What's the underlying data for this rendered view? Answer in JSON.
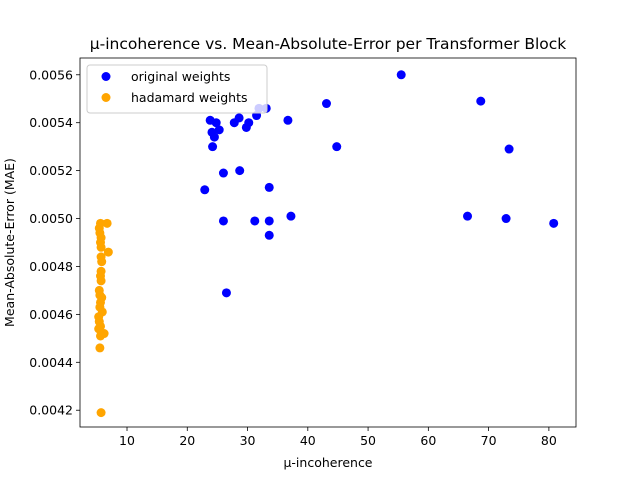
{
  "chart_data": {
    "type": "scatter",
    "title": "μ-incoherence vs. Mean-Absolute-Error per Transformer Block",
    "xlabel": "μ-incoherence",
    "ylabel": "Mean-Absolute-Error (MAE)",
    "xlim": [
      2.2,
      84.5
    ],
    "ylim": [
      0.00413,
      0.00567
    ],
    "xticks": [
      10,
      20,
      30,
      40,
      50,
      60,
      70,
      80
    ],
    "yticks": [
      0.0042,
      0.0044,
      0.0046,
      0.0048,
      0.005,
      0.0052,
      0.0054,
      0.0056
    ],
    "ytick_labels": [
      "0.0042",
      "0.0044",
      "0.0046",
      "0.0048",
      "0.0050",
      "0.0052",
      "0.0054",
      "0.0056"
    ],
    "grid": false,
    "legend_position": "top-left",
    "series": [
      {
        "name": "original weights",
        "color": "#0000ff",
        "points": [
          [
            55.5,
            0.0056
          ],
          [
            68.7,
            0.00549
          ],
          [
            43.1,
            0.00548
          ],
          [
            31.9,
            0.00546
          ],
          [
            33.1,
            0.00546
          ],
          [
            31.5,
            0.00543
          ],
          [
            36.7,
            0.00541
          ],
          [
            23.8,
            0.00541
          ],
          [
            28.6,
            0.00542
          ],
          [
            27.8,
            0.0054
          ],
          [
            24.8,
            0.0054
          ],
          [
            30.2,
            0.0054
          ],
          [
            29.8,
            0.00538
          ],
          [
            25.3,
            0.00537
          ],
          [
            24.1,
            0.00536
          ],
          [
            24.5,
            0.00534
          ],
          [
            24.2,
            0.0053
          ],
          [
            44.8,
            0.0053
          ],
          [
            73.4,
            0.00529
          ],
          [
            28.7,
            0.0052
          ],
          [
            26.0,
            0.00519
          ],
          [
            33.6,
            0.00513
          ],
          [
            22.9,
            0.00512
          ],
          [
            37.2,
            0.00501
          ],
          [
            66.5,
            0.00501
          ],
          [
            72.9,
            0.005
          ],
          [
            26.0,
            0.00499
          ],
          [
            31.2,
            0.00499
          ],
          [
            33.6,
            0.00499
          ],
          [
            80.8,
            0.00498
          ],
          [
            33.6,
            0.00493
          ],
          [
            26.5,
            0.00469
          ]
        ]
      },
      {
        "name": "hadamard weights",
        "color": "#ffa500",
        "points": [
          [
            5.6,
            0.00498
          ],
          [
            6.7,
            0.00498
          ],
          [
            5.4,
            0.00496
          ],
          [
            5.5,
            0.00494
          ],
          [
            5.7,
            0.00492
          ],
          [
            5.6,
            0.0049
          ],
          [
            5.7,
            0.00488
          ],
          [
            6.9,
            0.00486
          ],
          [
            5.7,
            0.00484
          ],
          [
            5.8,
            0.00482
          ],
          [
            5.7,
            0.00478
          ],
          [
            5.6,
            0.00476
          ],
          [
            5.7,
            0.00474
          ],
          [
            5.4,
            0.0047
          ],
          [
            5.5,
            0.00468
          ],
          [
            5.8,
            0.00467
          ],
          [
            5.6,
            0.00465
          ],
          [
            5.5,
            0.00463
          ],
          [
            5.9,
            0.00461
          ],
          [
            5.3,
            0.00459
          ],
          [
            5.4,
            0.00457
          ],
          [
            5.6,
            0.00455
          ],
          [
            5.3,
            0.00454
          ],
          [
            6.2,
            0.00452
          ],
          [
            5.6,
            0.00451
          ],
          [
            5.5,
            0.00446
          ],
          [
            5.7,
            0.00419
          ]
        ]
      }
    ]
  }
}
